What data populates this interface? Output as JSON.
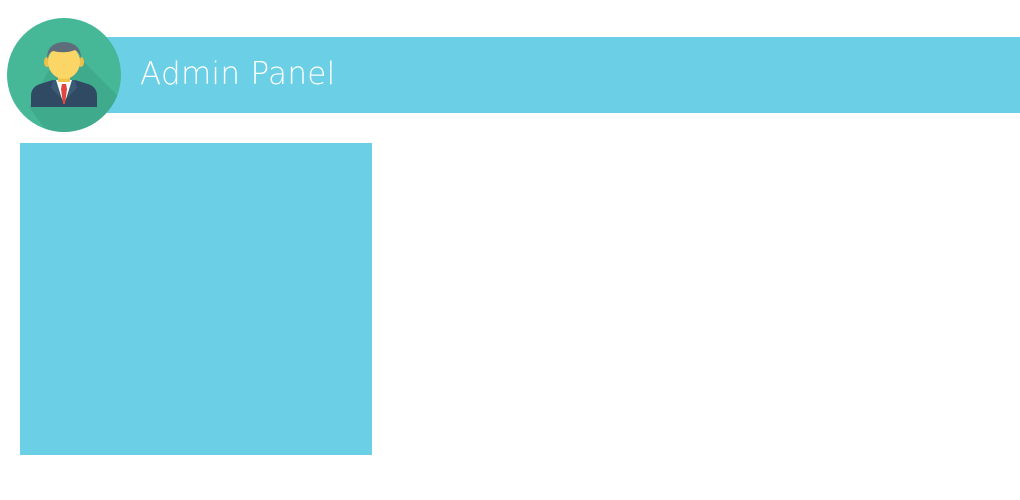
{
  "header": {
    "title": "Admin Panel",
    "avatar_icon": "admin-user-icon"
  },
  "colors": {
    "accent": "#6bcfe5",
    "avatar_background": "#46b898",
    "title_text": "#ffffff"
  }
}
